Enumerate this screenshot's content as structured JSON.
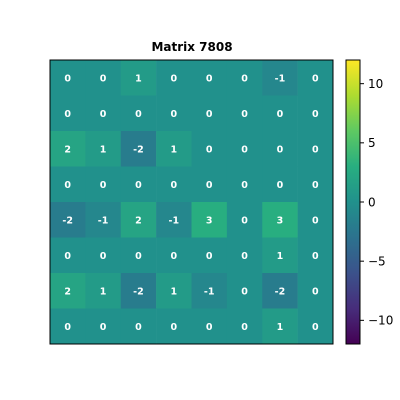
{
  "chart_data": {
    "type": "heatmap",
    "title": "Matrix 7808",
    "xlabel": "",
    "ylabel": "",
    "colormap": "viridis",
    "vmin": -12,
    "vmax": 12,
    "values": [
      [
        0,
        0,
        1,
        0,
        0,
        0,
        -1,
        0
      ],
      [
        0,
        0,
        0,
        0,
        0,
        0,
        0,
        0
      ],
      [
        2,
        1,
        -2,
        1,
        0,
        0,
        0,
        0
      ],
      [
        0,
        0,
        0,
        0,
        0,
        0,
        0,
        0
      ],
      [
        -2,
        -1,
        2,
        -1,
        3,
        0,
        3,
        0
      ],
      [
        0,
        0,
        0,
        0,
        0,
        0,
        1,
        0
      ],
      [
        2,
        1,
        -2,
        1,
        -1,
        0,
        -2,
        0
      ],
      [
        0,
        0,
        0,
        0,
        0,
        0,
        1,
        0
      ]
    ],
    "colorbar": {
      "ticks": [
        10,
        5,
        0,
        -5,
        -10
      ],
      "tick_labels": [
        "10",
        "5",
        "0",
        "−5",
        "−10"
      ]
    },
    "grid": false,
    "legend": "none"
  }
}
